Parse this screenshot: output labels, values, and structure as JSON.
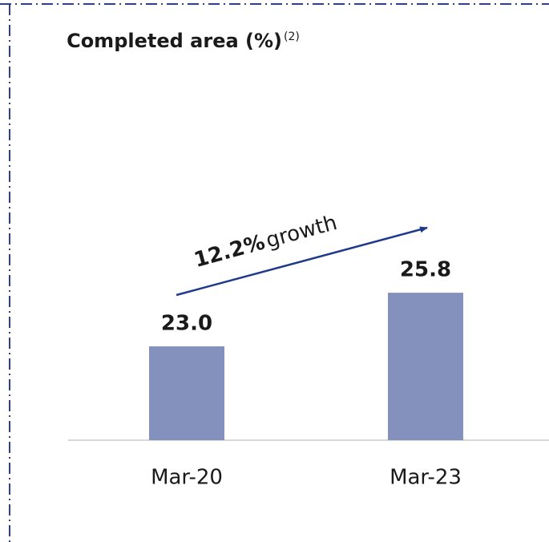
{
  "chart_data": {
    "type": "bar",
    "title": "Completed area (%)",
    "title_note": "(2)",
    "categories": [
      "Mar-20",
      "Mar-23"
    ],
    "values": [
      23.0,
      25.8
    ],
    "value_labels": [
      "23.0",
      "25.8"
    ],
    "color": "#8591bd",
    "ylim": [
      18.1,
      36.9
    ],
    "annotation": {
      "highlight": "12.2%",
      "text": "growth"
    }
  }
}
